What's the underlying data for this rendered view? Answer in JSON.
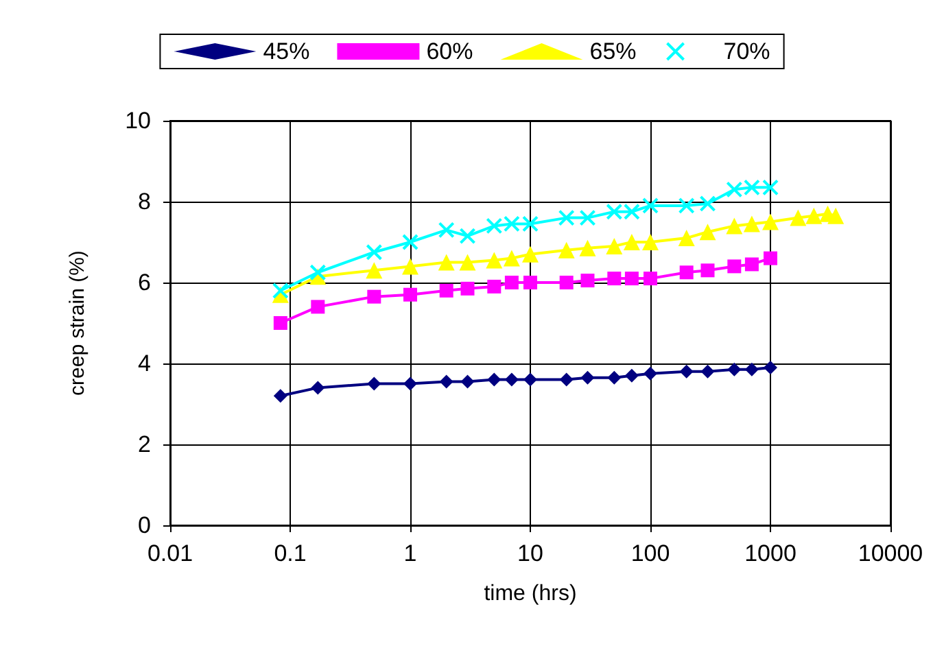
{
  "chart_data": {
    "type": "line",
    "xlabel": "time (hrs)",
    "ylabel": "creep strain (%)",
    "x": [
      0.083,
      0.17,
      0.5,
      1,
      2,
      3,
      5,
      7,
      10,
      20,
      30,
      50,
      70,
      100,
      200,
      300,
      500,
      700,
      1000
    ],
    "series": [
      {
        "name": "45%",
        "color": "#000080",
        "marker": "diamond",
        "values": [
          3.2,
          3.4,
          3.5,
          3.5,
          3.55,
          3.55,
          3.6,
          3.6,
          3.6,
          3.6,
          3.65,
          3.65,
          3.7,
          3.75,
          3.8,
          3.8,
          3.85,
          3.85,
          3.9
        ]
      },
      {
        "name": "60%",
        "color": "#ff00ff",
        "marker": "square",
        "values": [
          5.0,
          5.4,
          5.65,
          5.7,
          5.8,
          5.85,
          5.9,
          6.0,
          6.0,
          6.0,
          6.05,
          6.1,
          6.1,
          6.1,
          6.25,
          6.3,
          6.4,
          6.45,
          6.6
        ]
      },
      {
        "name": "65%",
        "color": "#ffff00",
        "marker": "triangle",
        "x": [
          0.083,
          0.17,
          0.5,
          1,
          2,
          3,
          5,
          7,
          10,
          20,
          30,
          50,
          70,
          100,
          200,
          300,
          500,
          700,
          1000,
          1700,
          2300,
          3000,
          3500
        ],
        "values": [
          5.7,
          6.15,
          6.3,
          6.4,
          6.5,
          6.5,
          6.55,
          6.6,
          6.7,
          6.8,
          6.85,
          6.9,
          7.0,
          7.0,
          7.1,
          7.25,
          7.4,
          7.45,
          7.5,
          7.6,
          7.65,
          7.7,
          7.65
        ]
      },
      {
        "name": "70%",
        "color": "#00ffff",
        "marker": "cross",
        "values": [
          5.8,
          6.25,
          6.75,
          7.0,
          7.3,
          7.15,
          7.4,
          7.45,
          7.45,
          7.6,
          7.6,
          7.75,
          7.75,
          7.9,
          7.9,
          7.95,
          8.3,
          8.35,
          8.35
        ]
      }
    ],
    "log": "x",
    "xlim": [
      0.01,
      10000
    ],
    "xticks": [
      0.01,
      0.1,
      1,
      10,
      100,
      1000,
      10000
    ],
    "ylim": [
      0,
      10
    ],
    "yticks": [
      0,
      2,
      4,
      6,
      8,
      10
    ],
    "grid": true,
    "legend": "top",
    "line_style": "solid"
  }
}
